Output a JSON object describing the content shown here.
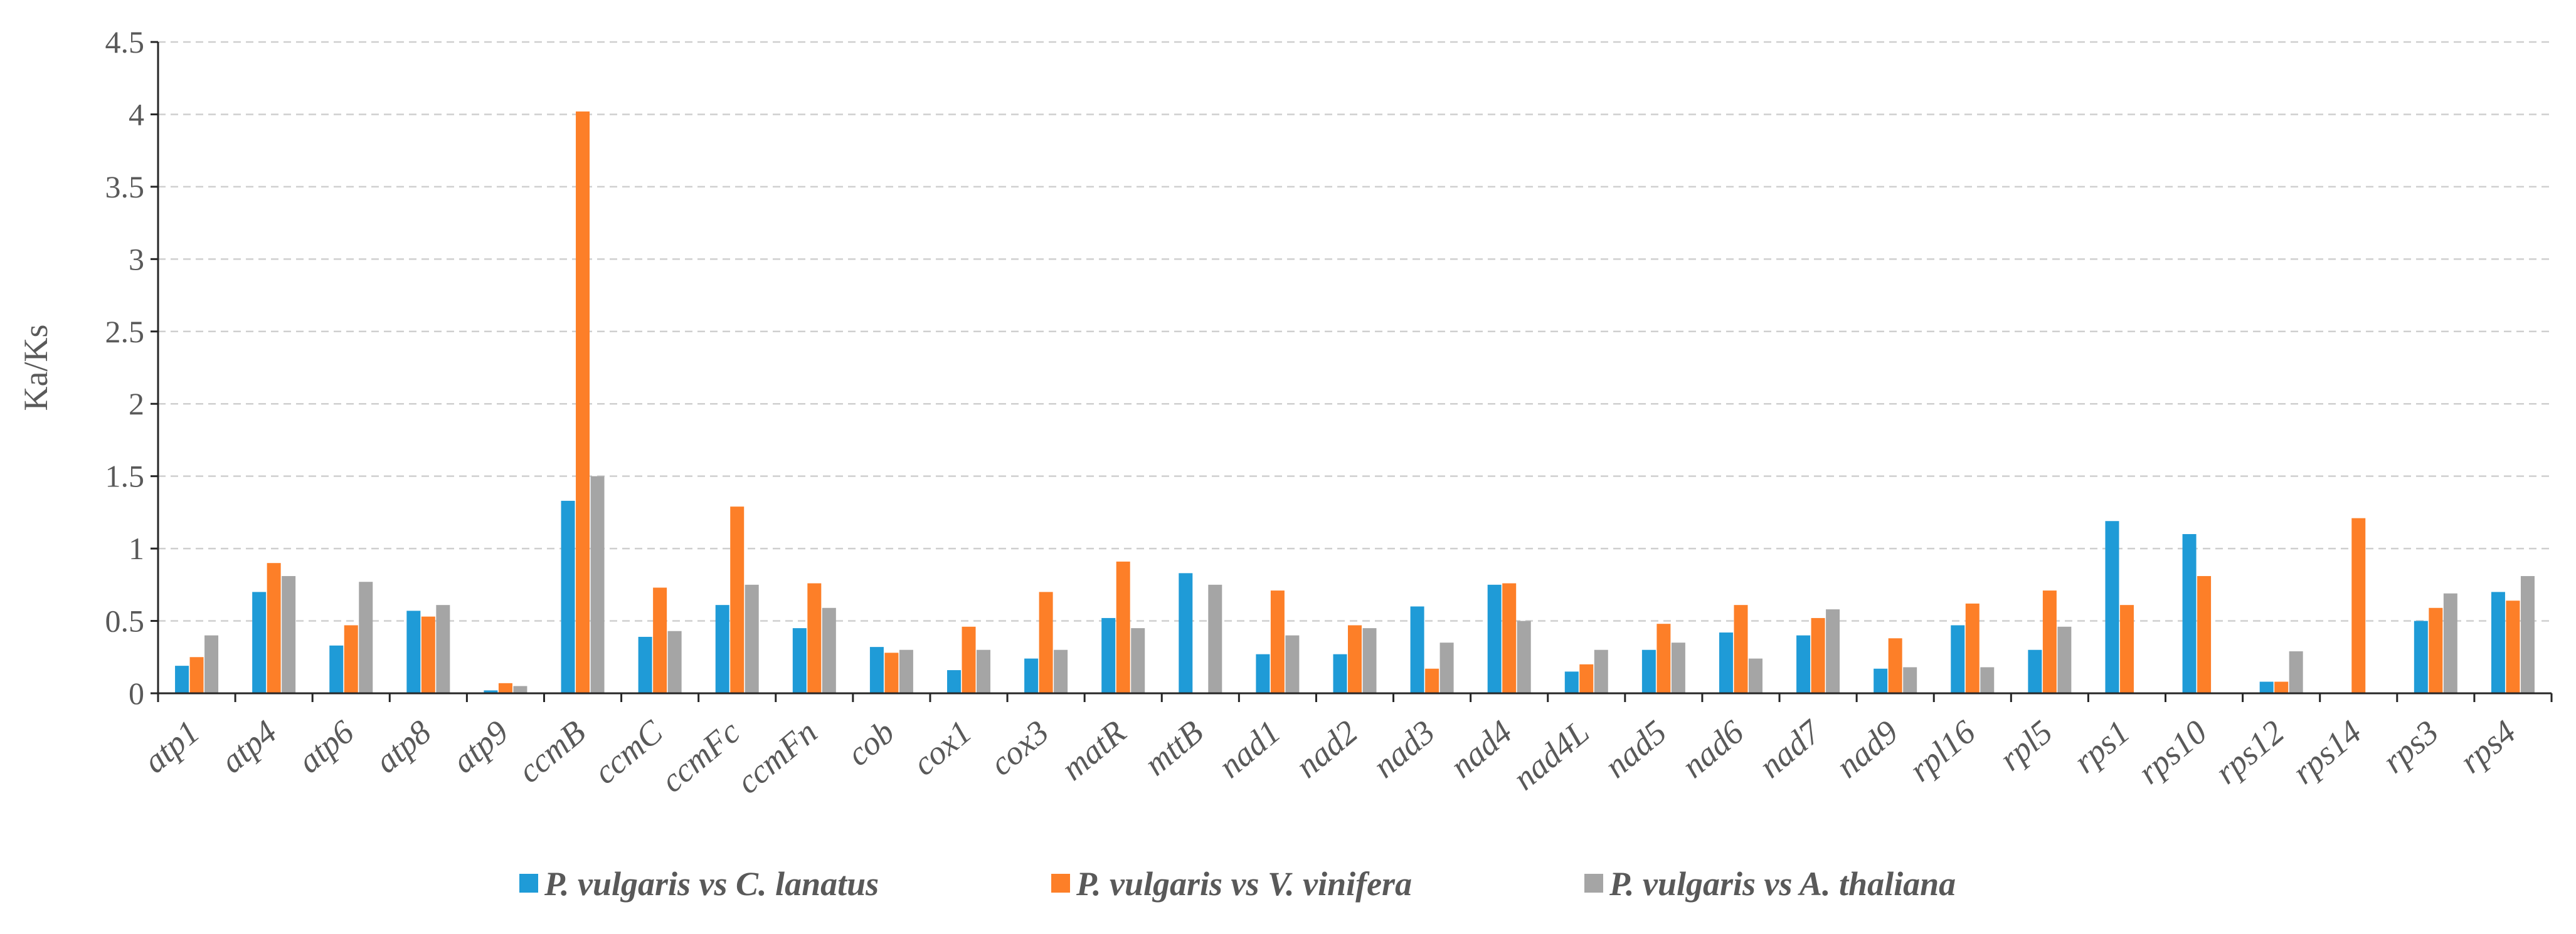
{
  "chart_data": {
    "type": "bar",
    "title": "",
    "xlabel": "",
    "ylabel": "Ka/Ks",
    "ylim": [
      0,
      4.5
    ],
    "yticks": [
      "0",
      "0.5",
      "1",
      "1.5",
      "2",
      "2.5",
      "3",
      "3.5",
      "4",
      "4.5"
    ],
    "grid": true,
    "legend_position": "bottom",
    "categories": [
      "atp1",
      "atp4",
      "atp6",
      "atp8",
      "atp9",
      "ccmB",
      "ccmC",
      "ccmFc",
      "ccmFn",
      "cob",
      "cox1",
      "cox3",
      "matR",
      "mttB",
      "nad1",
      "nad2",
      "nad3",
      "nad4",
      "nad4L",
      "nad5",
      "nad6",
      "nad7",
      "nad9",
      "rpl16",
      "rpl5",
      "rps1",
      "rps10",
      "rps12",
      "rps14",
      "rps3",
      "rps4"
    ],
    "series": [
      {
        "name": "P. vulgaris vs C. lanatus",
        "color": "#1f9bd7",
        "values": [
          0.19,
          0.7,
          0.33,
          0.57,
          0.02,
          1.33,
          0.39,
          0.61,
          0.45,
          0.32,
          0.16,
          0.24,
          0.52,
          0.83,
          0.27,
          0.27,
          0.6,
          0.75,
          0.15,
          0.3,
          0.42,
          0.4,
          0.17,
          0.47,
          0.3,
          1.19,
          1.1,
          0.08,
          0.0,
          0.5,
          0.7
        ]
      },
      {
        "name": "P. vulgaris vs V. vinifera",
        "color": "#fd7f28",
        "values": [
          0.25,
          0.9,
          0.47,
          0.53,
          0.07,
          4.02,
          0.73,
          1.29,
          0.76,
          0.28,
          0.46,
          0.7,
          0.91,
          0.0,
          0.71,
          0.47,
          0.17,
          0.76,
          0.2,
          0.48,
          0.61,
          0.52,
          0.38,
          0.62,
          0.71,
          0.61,
          0.81,
          0.08,
          1.21,
          0.59,
          0.64
        ]
      },
      {
        "name": "P. vulgaris vs A. thaliana",
        "color": "#a5a5a5",
        "values": [
          0.4,
          0.81,
          0.77,
          0.61,
          0.05,
          1.5,
          0.43,
          0.75,
          0.59,
          0.3,
          0.3,
          0.3,
          0.45,
          0.75,
          0.4,
          0.45,
          0.35,
          0.5,
          0.3,
          0.35,
          0.24,
          0.58,
          0.18,
          0.18,
          0.46,
          0.0,
          0.0,
          0.29,
          0.0,
          0.69,
          0.81
        ]
      }
    ]
  }
}
